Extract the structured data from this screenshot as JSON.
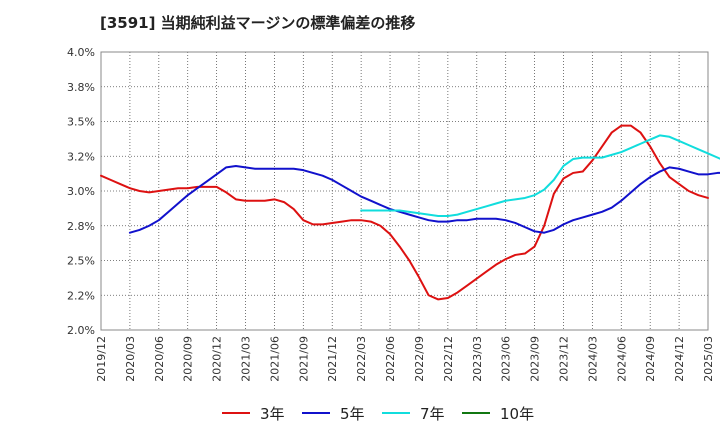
{
  "title": "[3591]  当期純利益マージンの標準偏差の推移",
  "chart_data": {
    "type": "line",
    "xlabel": "",
    "ylabel": "",
    "x_ticks": [
      "2019/12",
      "2020/03",
      "2020/06",
      "2020/09",
      "2020/12",
      "2021/03",
      "2021/06",
      "2021/09",
      "2021/12",
      "2022/03",
      "2022/06",
      "2022/09",
      "2022/12",
      "2023/03",
      "2023/06",
      "2023/09",
      "2023/12",
      "2024/03",
      "2024/06",
      "2024/09",
      "2024/12",
      "2025/03"
    ],
    "y_ticks": [
      "2.0%",
      "2.2%",
      "2.5%",
      "2.8%",
      "3.0%",
      "3.2%",
      "3.5%",
      "3.8%",
      "4.0%"
    ],
    "ylim": [
      2.0,
      4.0
    ],
    "grid": true,
    "legend_position": "bottom",
    "series": [
      {
        "name": "3年",
        "color": "#dd1111",
        "start": "2019/12",
        "values": [
          3.11,
          3.08,
          3.05,
          3.02,
          3.0,
          2.99,
          3.0,
          3.01,
          3.02,
          3.02,
          3.03,
          3.03,
          3.03,
          2.99,
          2.94,
          2.93,
          2.93,
          2.93,
          2.94,
          2.92,
          2.87,
          2.79,
          2.76,
          2.76,
          2.77,
          2.78,
          2.79,
          2.79,
          2.78,
          2.75,
          2.69,
          2.6,
          2.5,
          2.38,
          2.25,
          2.22,
          2.23,
          2.27,
          2.32,
          2.37,
          2.42,
          2.47,
          2.51,
          2.54,
          2.55,
          2.6,
          2.75,
          2.98,
          3.09,
          3.13,
          3.14,
          3.22,
          3.32,
          3.42,
          3.47,
          3.47,
          3.42,
          3.32,
          3.2,
          3.1,
          3.05,
          3.0,
          2.97,
          2.95
        ]
      },
      {
        "name": "5年",
        "color": "#1111cc",
        "start": "2020/03",
        "values": [
          2.7,
          2.72,
          2.75,
          2.79,
          2.85,
          2.91,
          2.97,
          3.02,
          3.07,
          3.12,
          3.17,
          3.18,
          3.17,
          3.16,
          3.16,
          3.16,
          3.16,
          3.16,
          3.15,
          3.13,
          3.11,
          3.08,
          3.04,
          3.0,
          2.96,
          2.93,
          2.9,
          2.87,
          2.85,
          2.83,
          2.81,
          2.79,
          2.78,
          2.78,
          2.79,
          2.79,
          2.8,
          2.8,
          2.8,
          2.79,
          2.77,
          2.74,
          2.71,
          2.7,
          2.72,
          2.76,
          2.79,
          2.81,
          2.83,
          2.85,
          2.88,
          2.93,
          2.99,
          3.05,
          3.1,
          3.14,
          3.17,
          3.16,
          3.14,
          3.12,
          3.12,
          3.13,
          3.13,
          3.12
        ]
      },
      {
        "name": "7年",
        "color": "#11dddd",
        "start": "2022/03",
        "values": [
          2.86,
          2.86,
          2.86,
          2.86,
          2.86,
          2.85,
          2.84,
          2.83,
          2.82,
          2.82,
          2.83,
          2.85,
          2.87,
          2.89,
          2.91,
          2.93,
          2.94,
          2.95,
          2.97,
          3.01,
          3.08,
          3.18,
          3.23,
          3.24,
          3.24,
          3.24,
          3.26,
          3.28,
          3.31,
          3.34,
          3.37,
          3.4,
          3.39,
          3.36,
          3.33,
          3.3,
          3.27,
          3.24,
          3.21
        ]
      },
      {
        "name": "10年",
        "color": "#117711",
        "start": "",
        "values": []
      }
    ]
  }
}
